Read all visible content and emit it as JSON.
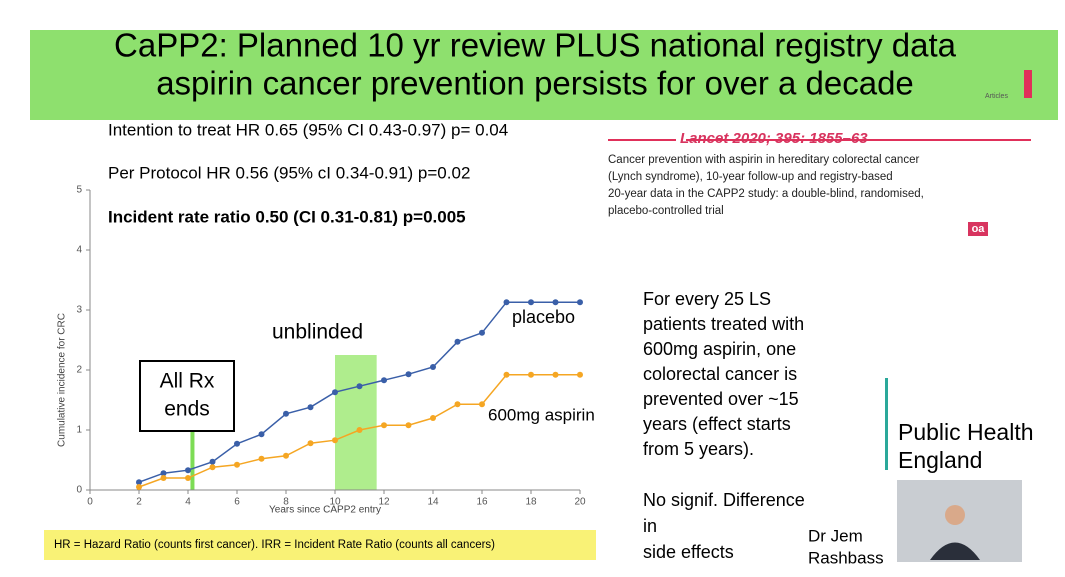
{
  "slide": {
    "title": [
      "CaPP2: Planned 10 yr review PLUS national registry data",
      "aspirin cancer prevention persists for over a decade"
    ],
    "tag": "Articles",
    "stats": [
      "Intention to treat HR 0.65 (95% CI 0.43-0.97) p= 0.04",
      "Per Protocol HR 0.56 (95% cI 0.34-0.91) p=0.02",
      "Incident rate ratio 0.50 (CI 0.31-0.81) p=0.005"
    ],
    "citation": "Lancet 2020; 395: 1855–63",
    "article_title": [
      "Cancer prevention with aspirin in hereditary colorectal cancer",
      "(Lynch syndrome), 10-year follow-up and registry-based",
      "20-year data in the CAPP2 study: a double-blind, randomised,",
      "placebo-controlled trial"
    ],
    "open_access": "oa",
    "summary": [
      "For every 25 LS",
      "patients treated with",
      "600mg aspirin, one",
      "colorectal cancer is",
      "prevented over ~15",
      "years (effect starts",
      "from 5 years)."
    ],
    "side_effects": [
      "No signif. Difference",
      "in",
      "side effects"
    ],
    "logo": [
      "Public Health",
      "England"
    ],
    "speaker": [
      "Dr Jem",
      "Rashbass"
    ],
    "footnote": "HR = Hazard Ratio (counts first cancer). IRR = Incident Rate Ratio (counts all cancers)"
  },
  "chart_data": {
    "type": "line",
    "x_label": "Years since CAPP2 entry",
    "y_label": "Cumulative incidence for CRC",
    "x": [
      2,
      3,
      4,
      5,
      6,
      7,
      8,
      9,
      10,
      11,
      12,
      13,
      14,
      15,
      16,
      17,
      18,
      19,
      20
    ],
    "series": [
      {
        "name": "placebo",
        "color": "#3a5fa8",
        "values": [
          0.13,
          0.28,
          0.33,
          0.47,
          0.77,
          0.93,
          1.27,
          1.38,
          1.63,
          1.73,
          1.83,
          1.93,
          2.05,
          2.47,
          2.62,
          3.13,
          3.13,
          3.13,
          3.13
        ]
      },
      {
        "name": "600mg aspirin",
        "color": "#f5a623",
        "values": [
          0.05,
          0.2,
          0.2,
          0.38,
          0.42,
          0.52,
          0.57,
          0.78,
          0.83,
          1.0,
          1.08,
          1.08,
          1.2,
          1.43,
          1.43,
          1.92,
          1.92,
          1.92,
          1.92
        ]
      }
    ],
    "annotations": [
      "unblinded",
      "All Rx",
      "ends"
    ],
    "xlim": [
      0,
      20
    ],
    "xticks": [
      0,
      2,
      4,
      6,
      8,
      10,
      12,
      14,
      16,
      18,
      20
    ],
    "ylim": [
      0,
      5
    ],
    "yticks": [
      0,
      1,
      2,
      3,
      4,
      5
    ]
  }
}
